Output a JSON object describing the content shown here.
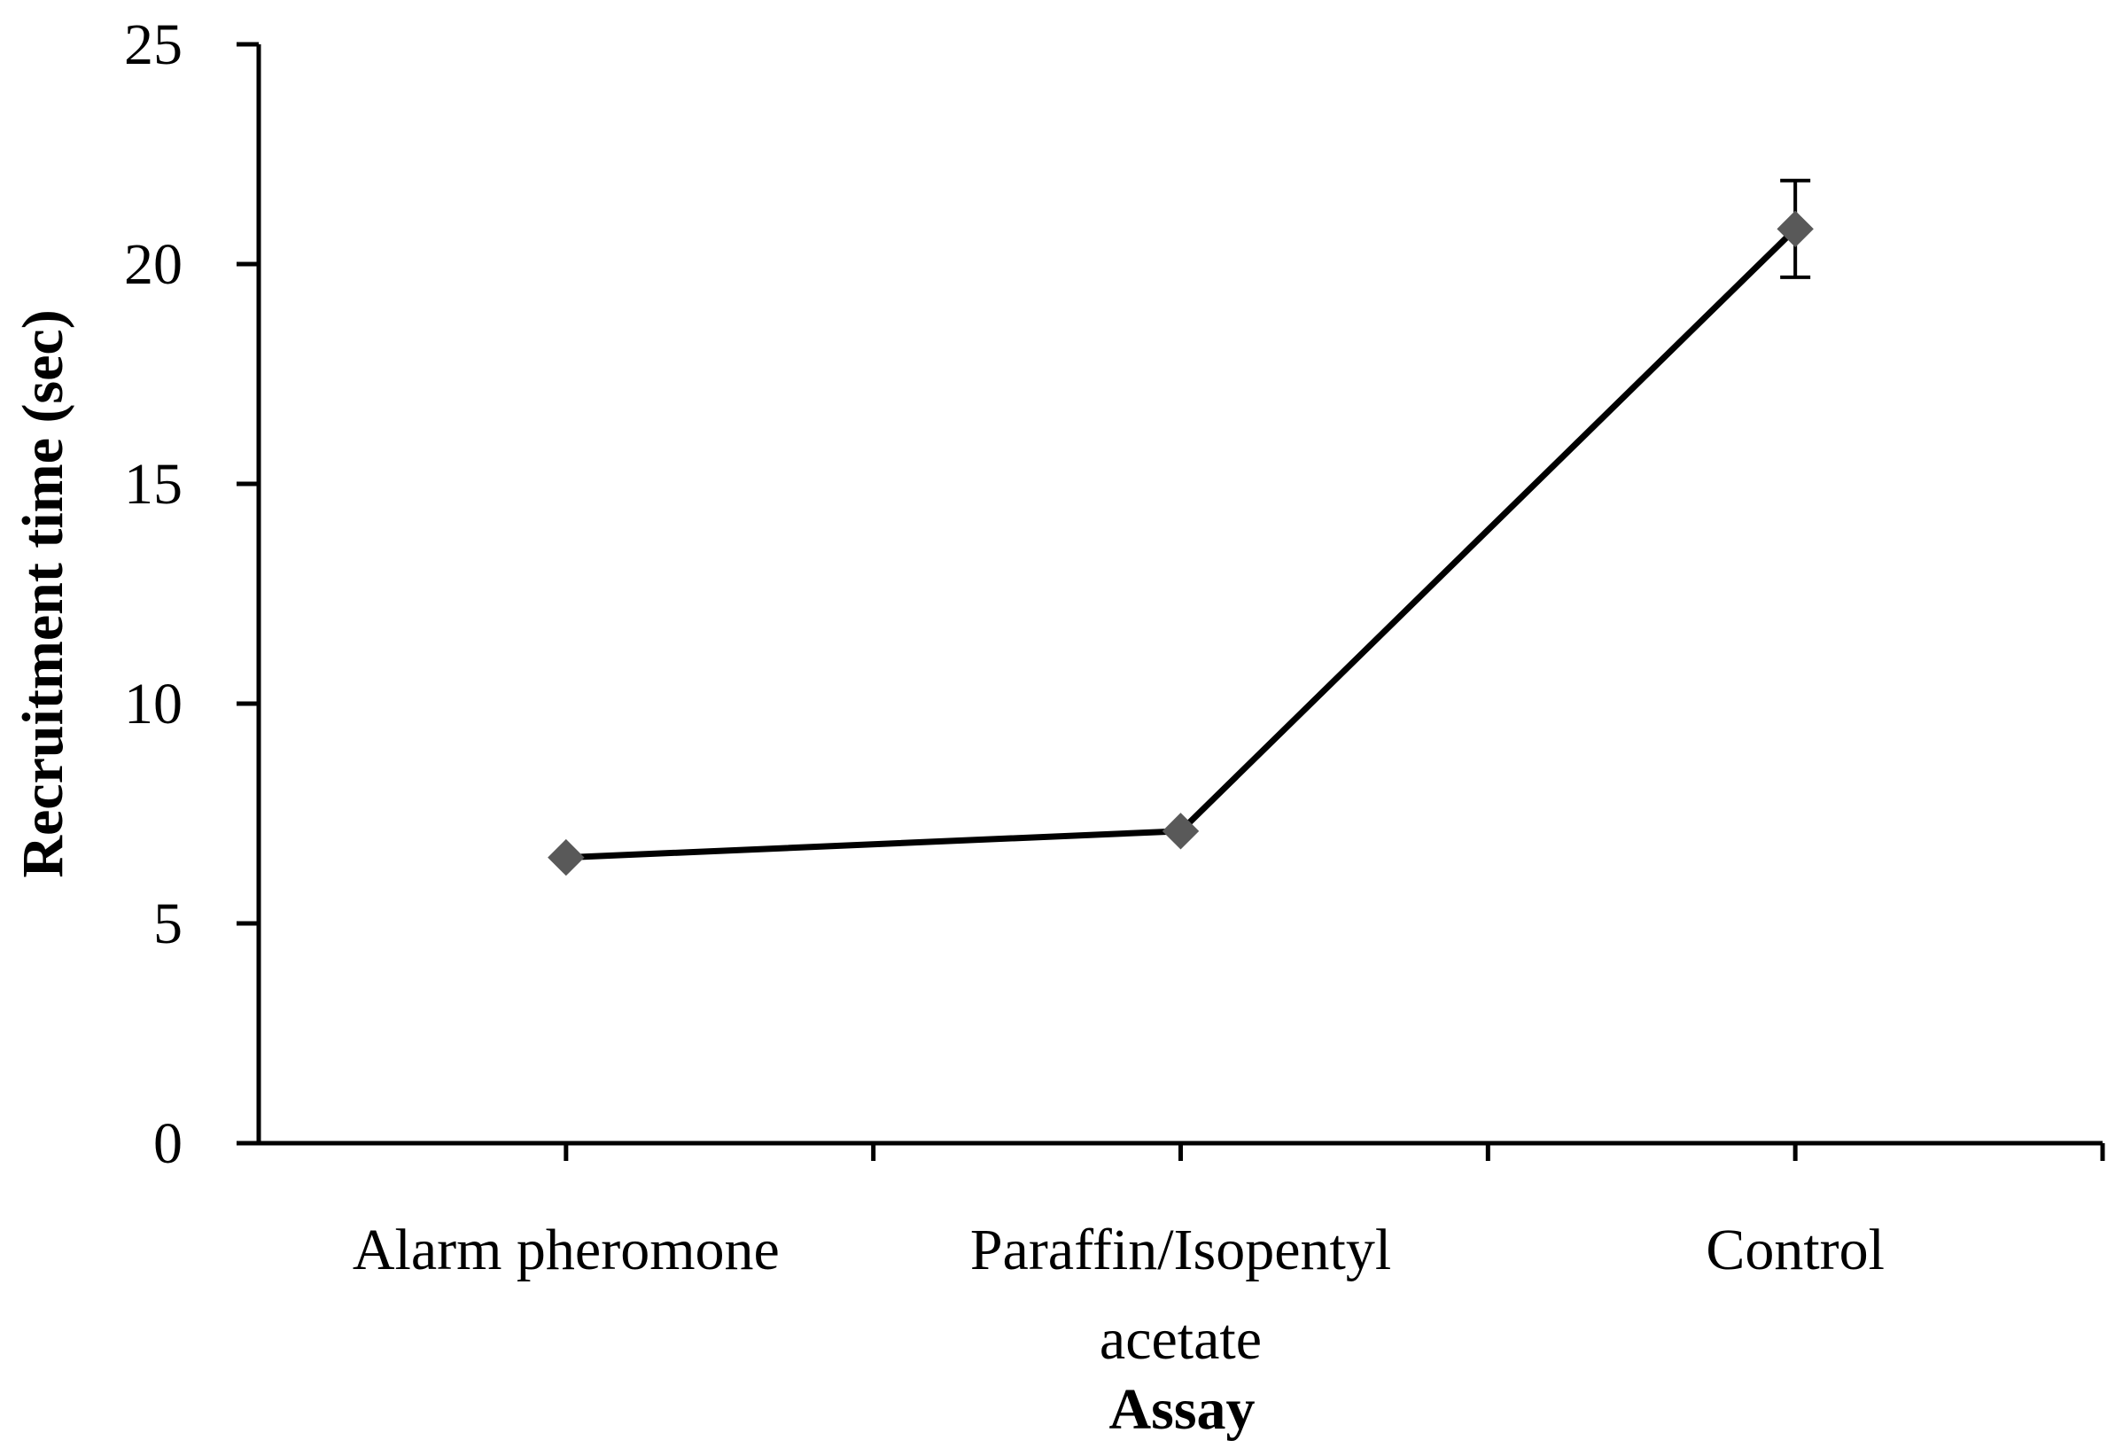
{
  "chart_data": {
    "type": "line",
    "categories": [
      "Alarm pheromone",
      "Paraffin/Isopentyl acetate",
      "Control"
    ],
    "category_lines": [
      [
        "Alarm pheromone"
      ],
      [
        "Paraffin/Isopentyl",
        "acetate"
      ],
      [
        "Control"
      ]
    ],
    "series": [
      {
        "values": [
          6.5,
          7.1,
          20.8
        ],
        "error": [
          0,
          0,
          1.1
        ],
        "color": "#595959"
      }
    ],
    "line_color": "#000000",
    "xlabel": "Assay",
    "ylabel": "Recruitment time (sec)",
    "ylim": [
      0,
      25
    ],
    "yticks": [
      0,
      5,
      10,
      15,
      20,
      25
    ],
    "grid": false,
    "legend": "none"
  }
}
